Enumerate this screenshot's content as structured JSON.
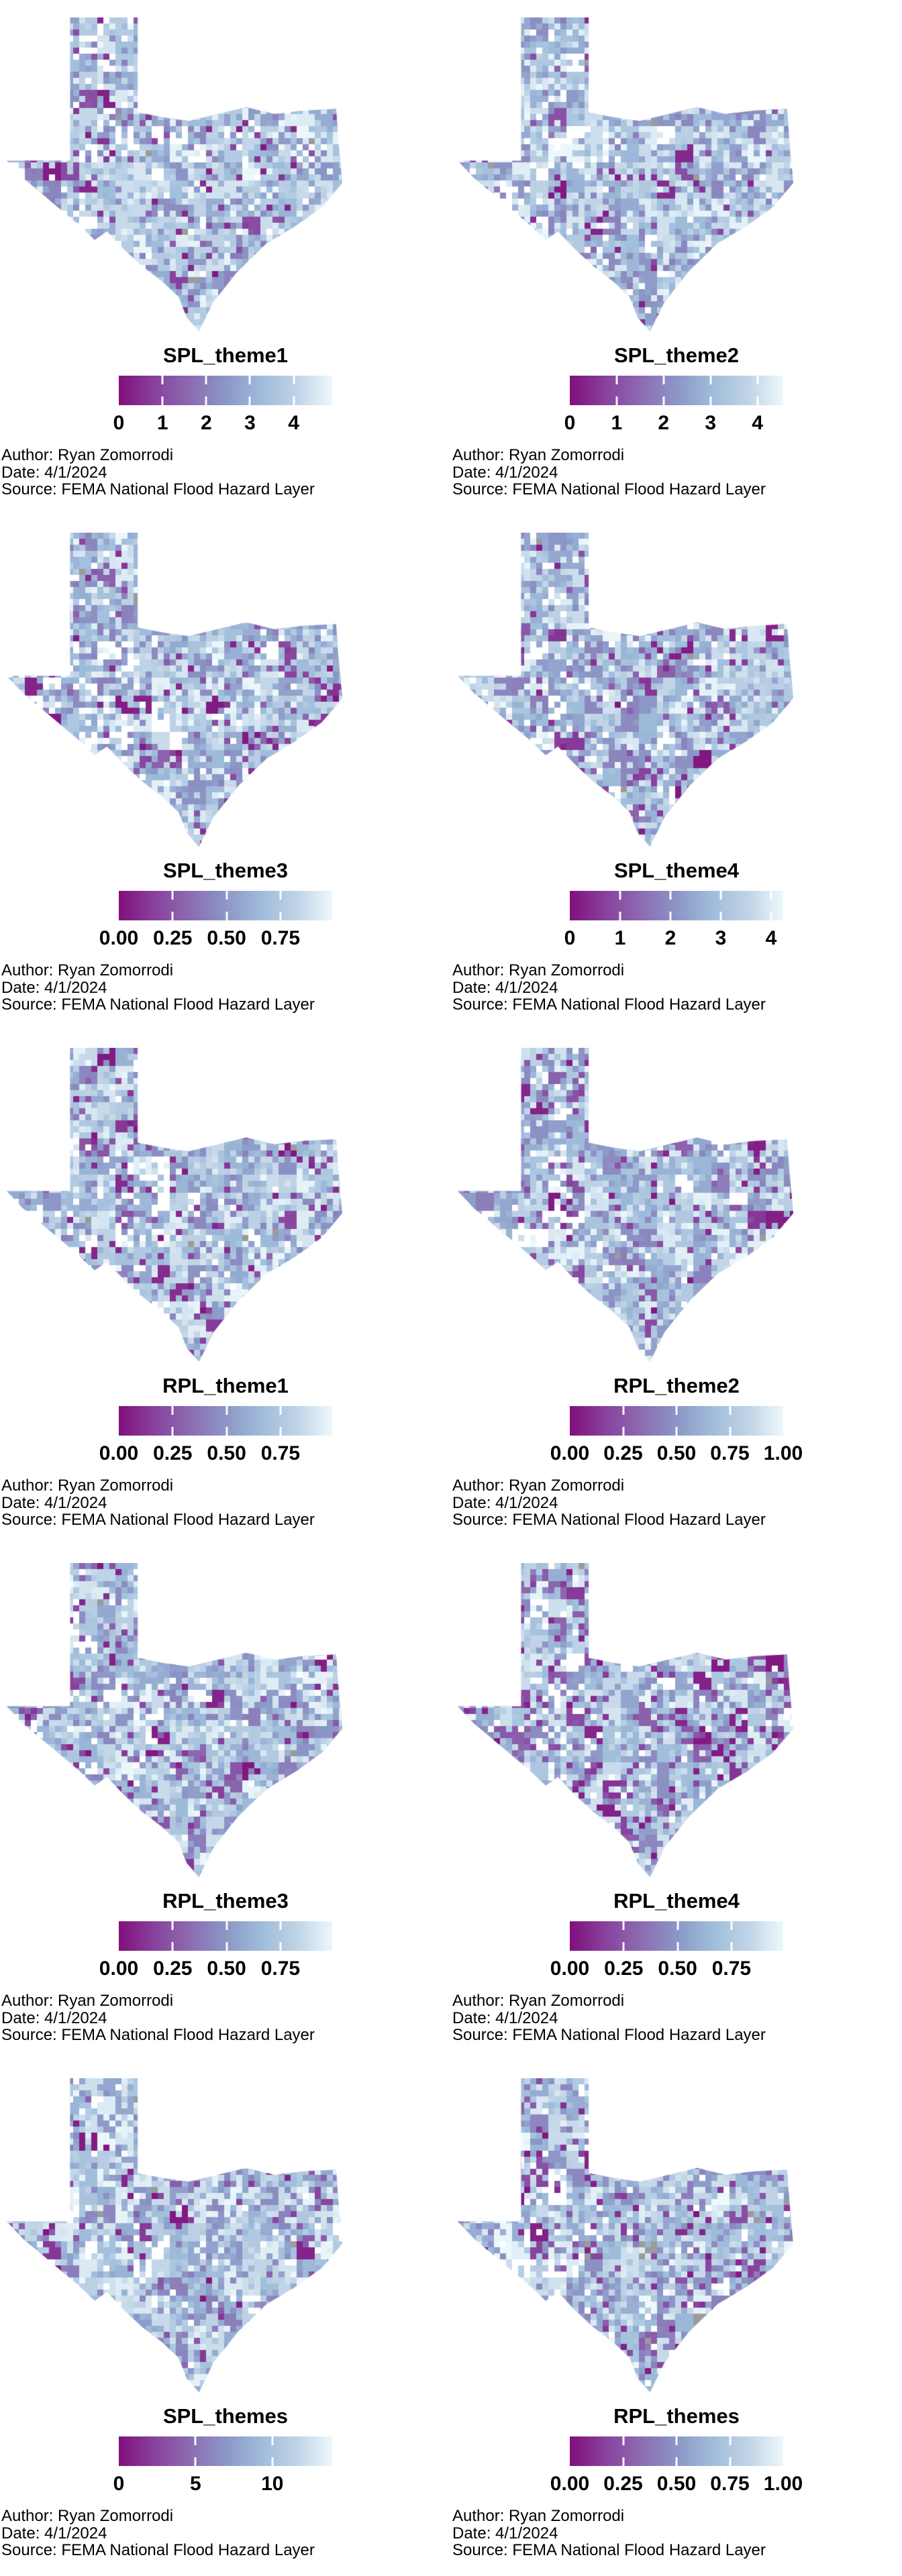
{
  "figure": {
    "background": "#ffffff",
    "region": "Texas census tracts choropleth small multiples"
  },
  "caption": {
    "author": "Author: Ryan Zomorrodi",
    "date": "Date: 4/1/2024",
    "source": "Source: FEMA National Flood Hazard Layer"
  },
  "colors": {
    "gradient_stops": [
      "#810f7c",
      "#88419d",
      "#8c6bb1",
      "#8c96c6",
      "#9ebcda",
      "#bfd3e6",
      "#edf8fb"
    ],
    "na_tract": "#9b9b9b",
    "missing_tract": "#ffffff",
    "text": "#000000"
  },
  "panels": [
    {
      "title": "SPL_theme1",
      "tick_labels": [
        "0",
        "1",
        "2",
        "3",
        "4"
      ],
      "tick_values": [
        0,
        1,
        2,
        3,
        4
      ],
      "scale_max": 4.88,
      "purple_density": 0.09
    },
    {
      "title": "SPL_theme2",
      "tick_labels": [
        "0",
        "1",
        "2",
        "3",
        "4"
      ],
      "tick_values": [
        0,
        1,
        2,
        3,
        4
      ],
      "scale_max": 4.55,
      "purple_density": 0.05
    },
    {
      "title": "SPL_theme3",
      "tick_labels": [
        "0.00",
        "0.25",
        "0.50",
        "0.75"
      ],
      "tick_values": [
        0,
        0.25,
        0.5,
        0.75
      ],
      "scale_max": 0.99,
      "purple_density": 0.1
    },
    {
      "title": "SPL_theme4",
      "tick_labels": [
        "0",
        "1",
        "2",
        "3",
        "4"
      ],
      "tick_values": [
        0,
        1,
        2,
        3,
        4
      ],
      "scale_max": 4.24,
      "purple_density": 0.12
    },
    {
      "title": "RPL_theme1",
      "tick_labels": [
        "0.00",
        "0.25",
        "0.50",
        "0.75"
      ],
      "tick_values": [
        0,
        0.25,
        0.5,
        0.75
      ],
      "scale_max": 0.99,
      "purple_density": 0.11
    },
    {
      "title": "RPL_theme2",
      "tick_labels": [
        "0.00",
        "0.25",
        "0.50",
        "0.75",
        "1.00"
      ],
      "tick_values": [
        0,
        0.25,
        0.5,
        0.75,
        1.0
      ],
      "scale_max": 1.0,
      "purple_density": 0.09
    },
    {
      "title": "RPL_theme3",
      "tick_labels": [
        "0.00",
        "0.25",
        "0.50",
        "0.75"
      ],
      "tick_values": [
        0,
        0.25,
        0.5,
        0.75
      ],
      "scale_max": 0.99,
      "purple_density": 0.1
    },
    {
      "title": "RPL_theme4",
      "tick_labels": [
        "0.00",
        "0.25",
        "0.50",
        "0.75"
      ],
      "tick_values": [
        0,
        0.25,
        0.5,
        0.75
      ],
      "scale_max": 0.99,
      "purple_density": 0.17
    },
    {
      "title": "SPL_themes",
      "tick_labels": [
        "0",
        "5",
        "10"
      ],
      "tick_values": [
        0,
        5,
        10
      ],
      "scale_max": 13.9,
      "purple_density": 0.08
    },
    {
      "title": "RPL_themes",
      "tick_labels": [
        "0.00",
        "0.25",
        "0.50",
        "0.75",
        "1.00"
      ],
      "tick_values": [
        0,
        0.25,
        0.5,
        0.75,
        1.0
      ],
      "scale_max": 1.0,
      "purple_density": 0.14
    }
  ]
}
